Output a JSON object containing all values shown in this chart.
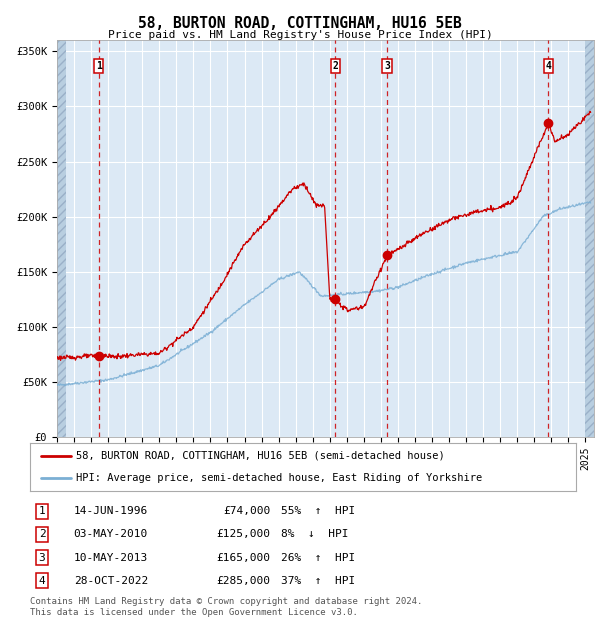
{
  "title": "58, BURTON ROAD, COTTINGHAM, HU16 5EB",
  "subtitle": "Price paid vs. HM Land Registry's House Price Index (HPI)",
  "ylim": [
    0,
    360000
  ],
  "yticks": [
    0,
    50000,
    100000,
    150000,
    200000,
    250000,
    300000,
    350000
  ],
  "ytick_labels": [
    "£0",
    "£50K",
    "£100K",
    "£150K",
    "£200K",
    "£250K",
    "£300K",
    "£350K"
  ],
  "xlim_start": 1994.0,
  "xlim_end": 2025.5,
  "bg_color": "#dce9f5",
  "grid_color": "#ffffff",
  "hatch_color": "#b8cee0",
  "sale_color": "#cc0000",
  "hpi_color": "#7bafd4",
  "marker_color": "#cc0000",
  "legend_sale_label": "58, BURTON ROAD, COTTINGHAM, HU16 5EB (semi-detached house)",
  "legend_hpi_label": "HPI: Average price, semi-detached house, East Riding of Yorkshire",
  "transactions": [
    {
      "num": 1,
      "date": "14-JUN-1996",
      "price": 74000,
      "pct": "55%",
      "dir": "↑",
      "year": 1996.45
    },
    {
      "num": 2,
      "date": "03-MAY-2010",
      "price": 125000,
      "pct": "8%",
      "dir": "↓",
      "year": 2010.33
    },
    {
      "num": 3,
      "date": "10-MAY-2013",
      "price": 165000,
      "pct": "26%",
      "dir": "↑",
      "year": 2013.36
    },
    {
      "num": 4,
      "date": "28-OCT-2022",
      "price": 285000,
      "pct": "37%",
      "dir": "↑",
      "year": 2022.83
    }
  ],
  "footer": "Contains HM Land Registry data © Crown copyright and database right 2024.\nThis data is licensed under the Open Government Licence v3.0."
}
